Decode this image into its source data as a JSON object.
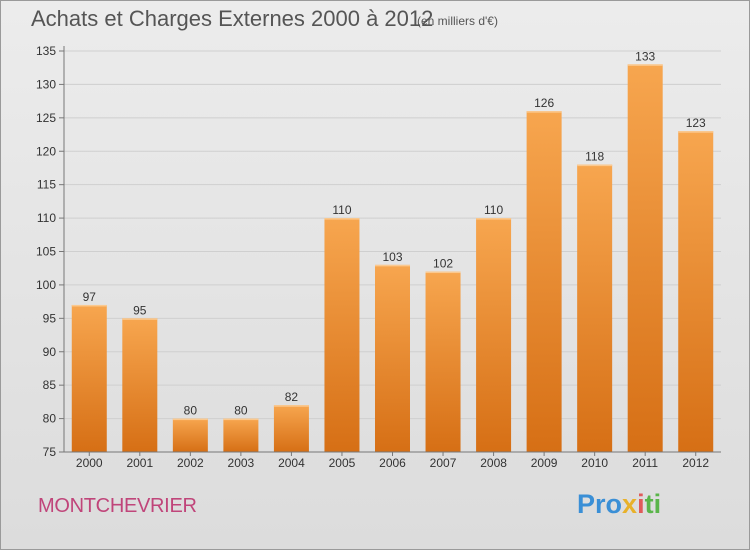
{
  "title": "Achats et Charges Externes 2000 à 2012",
  "subtitle": "(en milliers d'€)",
  "place": "MONTCHEVRIER",
  "brand": {
    "letters": [
      {
        "ch": "P",
        "color": "#3a8fd6"
      },
      {
        "ch": "r",
        "color": "#3a8fd6"
      },
      {
        "ch": "o",
        "color": "#3a8fd6"
      },
      {
        "ch": "x",
        "color": "#e8b12a"
      },
      {
        "ch": "i",
        "color": "#e05a5a"
      },
      {
        "ch": "t",
        "color": "#5ab54a"
      },
      {
        "ch": "i",
        "color": "#5ab54a"
      }
    ]
  },
  "colors": {
    "bar_top": "#f7a64f",
    "bar_bottom": "#d66f15",
    "grid": "#cfcfcf",
    "axis": "#777777"
  },
  "chart_data": {
    "type": "bar",
    "categories": [
      "2000",
      "2001",
      "2002",
      "2003",
      "2004",
      "2005",
      "2006",
      "2007",
      "2008",
      "2009",
      "2010",
      "2011",
      "2012"
    ],
    "values": [
      97,
      95,
      80,
      80,
      82,
      110,
      103,
      102,
      110,
      126,
      118,
      133,
      123
    ],
    "ylim": [
      75,
      135
    ],
    "yticks": [
      75,
      80,
      85,
      90,
      95,
      100,
      105,
      110,
      115,
      120,
      125,
      130,
      135
    ],
    "grid": true
  }
}
